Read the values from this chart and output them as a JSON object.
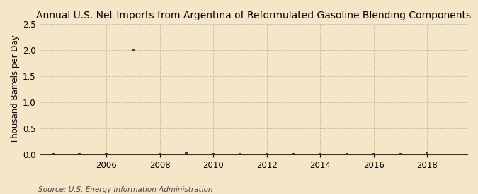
{
  "title": "Annual U.S. Net Imports from Argentina of Reformulated Gasoline Blending Components",
  "ylabel": "Thousand Barrels per Day",
  "source": "Source: U.S. Energy Information Administration",
  "background_color": "#f5e6c8",
  "plot_bg_color": "#f5e6c8",
  "data_years": [
    2004,
    2005,
    2006,
    2007,
    2008,
    2009,
    2010,
    2011,
    2012,
    2013,
    2014,
    2015,
    2016,
    2017,
    2018
  ],
  "data_values": [
    0.0,
    0.0,
    0.0,
    2.0,
    0.0,
    0.02,
    0.0,
    0.0,
    0.0,
    0.0,
    0.0,
    0.0,
    0.0,
    0.0,
    0.02
  ],
  "marker_color": "#8b1a1a",
  "xlim": [
    2003.5,
    2019.5
  ],
  "ylim": [
    0.0,
    2.5
  ],
  "yticks": [
    0.0,
    0.5,
    1.0,
    1.5,
    2.0,
    2.5
  ],
  "xticks": [
    2006,
    2008,
    2010,
    2012,
    2014,
    2016,
    2018
  ],
  "grid_color": "#bbbbbb",
  "grid_style": "--",
  "title_fontsize": 10,
  "label_fontsize": 8.5,
  "tick_fontsize": 8.5,
  "source_fontsize": 7.5
}
